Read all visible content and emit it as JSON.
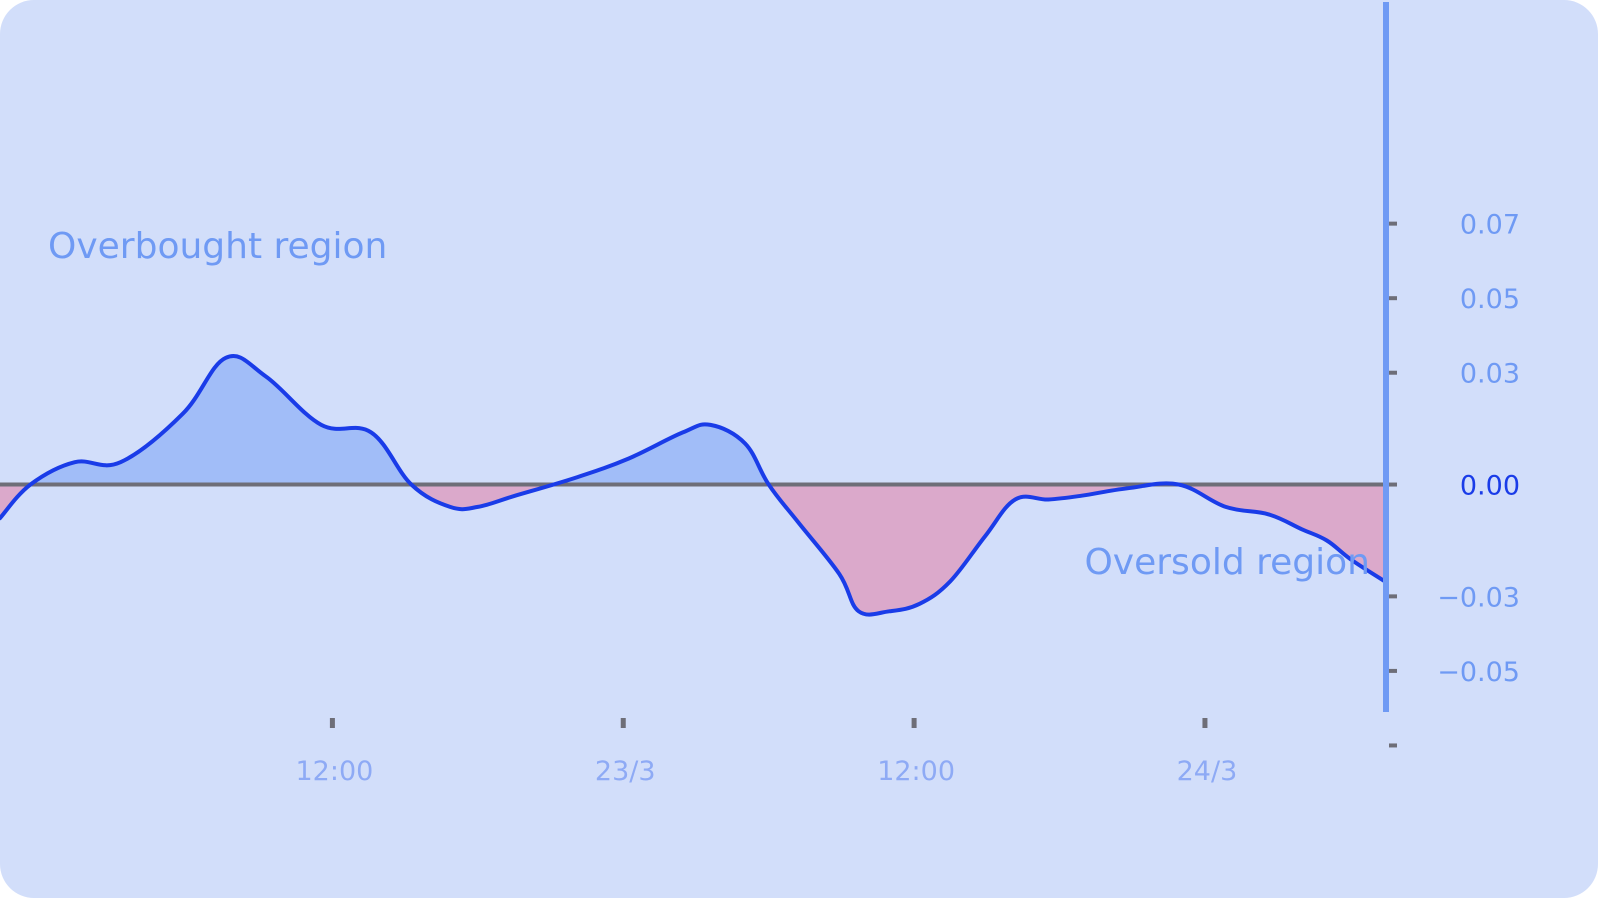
{
  "chart_data": {
    "type": "area",
    "annotations": {
      "upper": "Overbought region",
      "lower": "Oversold region"
    },
    "x_ticks": [
      "12:00",
      "23/3",
      "12:00",
      "24/3"
    ],
    "y_ticks": [
      "0.07",
      "0.05",
      "0.03",
      "0.00",
      "−0.03",
      "−0.05"
    ],
    "y_tick_values": [
      0.07,
      0.05,
      0.03,
      0.0,
      -0.03,
      -0.05
    ],
    "ylim": [
      -0.09,
      0.13
    ],
    "xlim": [
      0,
      100
    ],
    "x_tick_positions": [
      24,
      45,
      66,
      87
    ],
    "zero_line": 0.0,
    "series": [
      {
        "x": [
          0,
          2.2,
          5.4,
          8.7,
          13.2,
          16.3,
          19.2,
          23.2,
          26.8,
          29.7,
          32.5,
          34.5,
          37.2,
          41.7,
          45.4,
          49.3,
          51.3,
          53.8,
          55.5,
          57.6,
          60.6,
          62.0,
          64.2,
          66.4,
          68.6,
          71.1,
          73.3,
          75.7,
          78.1,
          81.4,
          85.1,
          88.5,
          91.6,
          94.0,
          95.8,
          97.5,
          100
        ],
        "values": [
          -0.009,
          0.0,
          0.006,
          0.006,
          0.019,
          0.034,
          0.029,
          0.016,
          0.014,
          0.0,
          -0.006,
          -0.006,
          -0.003,
          0.002,
          0.007,
          0.014,
          0.016,
          0.011,
          0.0,
          -0.01,
          -0.024,
          -0.034,
          -0.034,
          -0.032,
          -0.026,
          -0.014,
          -0.004,
          -0.004,
          -0.003,
          -0.001,
          0.0,
          -0.006,
          -0.008,
          -0.012,
          -0.015,
          -0.02,
          -0.026
        ]
      }
    ]
  },
  "colors": {
    "background": "#d2defa",
    "line": "#1a3ce8",
    "positive_fill": "#a1bdf8",
    "negative_fill": "#dba9cb",
    "zero_line": "#6e6e78",
    "axis": "#6f9af4",
    "label": "#6f9af4",
    "zero_label": "#1a3ce8",
    "x_tick_label": "#8eaaf5",
    "tick_mark": "#6e6e78"
  }
}
